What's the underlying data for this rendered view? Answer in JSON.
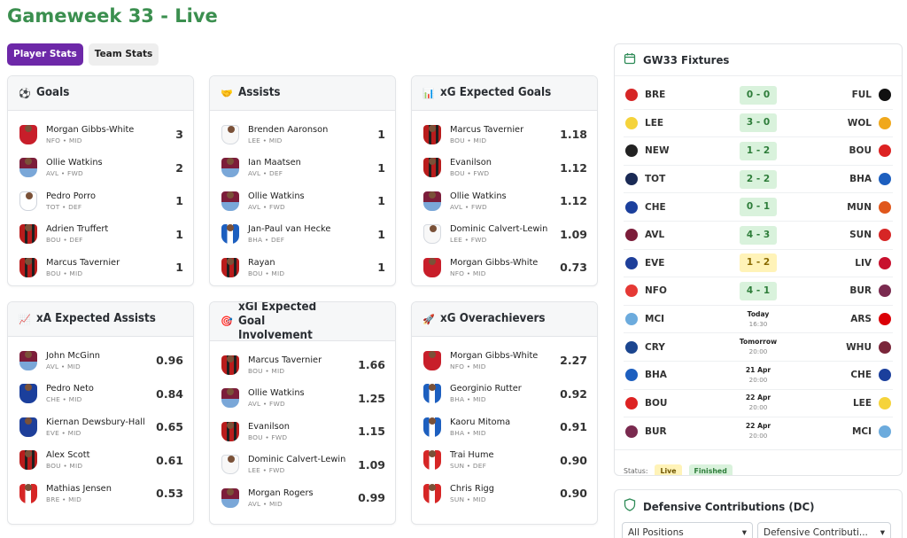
{
  "page": {
    "title": "Gameweek 33 - Live"
  },
  "tabs": [
    {
      "label": "Player Stats",
      "active": true
    },
    {
      "label": "Team Stats",
      "active": false
    }
  ],
  "cards": {
    "goals": {
      "title": "Goals",
      "icon": "soccer-ball-icon",
      "rows": [
        {
          "name": "Morgan Gibbs-White",
          "meta": "NFO • MID",
          "value": "3",
          "kit": "kit-nfo"
        },
        {
          "name": "Ollie Watkins",
          "meta": "AVL • FWD",
          "value": "2",
          "kit": "kit-avl"
        },
        {
          "name": "Pedro Porro",
          "meta": "TOT • DEF",
          "value": "1",
          "kit": "kit-tot"
        },
        {
          "name": "Adrien Truffert",
          "meta": "BOU • DEF",
          "value": "1",
          "kit": "kit-red"
        },
        {
          "name": "Marcus Tavernier",
          "meta": "BOU • MID",
          "value": "1",
          "kit": "kit-red"
        }
      ]
    },
    "assists": {
      "title": "Assists",
      "icon": "handshake-icon",
      "rows": [
        {
          "name": "Brenden Aaronson",
          "meta": "LEE • MID",
          "value": "1",
          "kit": "kit-lee"
        },
        {
          "name": "Ian Maatsen",
          "meta": "AVL • DEF",
          "value": "1",
          "kit": "kit-avl"
        },
        {
          "name": "Ollie Watkins",
          "meta": "AVL • FWD",
          "value": "1",
          "kit": "kit-avl"
        },
        {
          "name": "Jan-Paul van Hecke",
          "meta": "BHA • DEF",
          "value": "1",
          "kit": "kit-bha"
        },
        {
          "name": "Rayan",
          "meta": "BOU • MID",
          "value": "1",
          "kit": "kit-red"
        }
      ]
    },
    "xg": {
      "title": "xG Expected Goals",
      "icon": "bar-chart-icon",
      "rows": [
        {
          "name": "Marcus Tavernier",
          "meta": "BOU • MID",
          "value": "1.18",
          "kit": "kit-red"
        },
        {
          "name": "Evanilson",
          "meta": "BOU • FWD",
          "value": "1.12",
          "kit": "kit-red"
        },
        {
          "name": "Ollie Watkins",
          "meta": "AVL • FWD",
          "value": "1.12",
          "kit": "kit-avl"
        },
        {
          "name": "Dominic Calvert-Lewin",
          "meta": "LEE • FWD",
          "value": "1.09",
          "kit": "kit-lee"
        },
        {
          "name": "Morgan Gibbs-White",
          "meta": "NFO • MID",
          "value": "0.73",
          "kit": "kit-nfo"
        }
      ]
    },
    "xa": {
      "title": "xA Expected Assists",
      "icon": "trending-up-icon",
      "rows": [
        {
          "name": "John McGinn",
          "meta": "AVL • MID",
          "value": "0.96",
          "kit": "kit-avl"
        },
        {
          "name": "Pedro Neto",
          "meta": "CHE • MID",
          "value": "0.84",
          "kit": "kit-che"
        },
        {
          "name": "Kiernan Dewsbury-Hall",
          "meta": "EVE • MID",
          "value": "0.65",
          "kit": "kit-eve"
        },
        {
          "name": "Alex Scott",
          "meta": "BOU • MID",
          "value": "0.61",
          "kit": "kit-red"
        },
        {
          "name": "Mathias Jensen",
          "meta": "BRE • MID",
          "value": "0.53",
          "kit": "kit-bre"
        }
      ]
    },
    "xgi": {
      "title": "xGI Expected Goal Involvement",
      "icon": "target-icon",
      "rows": [
        {
          "name": "Marcus Tavernier",
          "meta": "BOU • MID",
          "value": "1.66",
          "kit": "kit-red"
        },
        {
          "name": "Ollie Watkins",
          "meta": "AVL • FWD",
          "value": "1.25",
          "kit": "kit-avl"
        },
        {
          "name": "Evanilson",
          "meta": "BOU • FWD",
          "value": "1.15",
          "kit": "kit-red"
        },
        {
          "name": "Dominic Calvert-Lewin",
          "meta": "LEE • FWD",
          "value": "1.09",
          "kit": "kit-lee"
        },
        {
          "name": "Morgan Rogers",
          "meta": "AVL • MID",
          "value": "0.99",
          "kit": "kit-avl"
        }
      ]
    },
    "overachievers": {
      "title": "xG Overachievers",
      "icon": "rocket-icon",
      "rows": [
        {
          "name": "Morgan Gibbs-White",
          "meta": "NFO • MID",
          "value": "2.27",
          "kit": "kit-nfo"
        },
        {
          "name": "Georginio Rutter",
          "meta": "BHA • MID",
          "value": "0.92",
          "kit": "kit-bha"
        },
        {
          "name": "Kaoru Mitoma",
          "meta": "BHA • MID",
          "value": "0.91",
          "kit": "kit-bha"
        },
        {
          "name": "Trai Hume",
          "meta": "SUN • DEF",
          "value": "0.90",
          "kit": "kit-sun"
        },
        {
          "name": "Chris Rigg",
          "meta": "SUN • MID",
          "value": "0.90",
          "kit": "kit-sun"
        }
      ]
    }
  },
  "fixtures": {
    "title": "GW33 Fixtures",
    "icon": "calendar-icon",
    "items": [
      {
        "home": "BRE",
        "away": "FUL",
        "score": "0 - 0",
        "state": "fin",
        "home_color": "#d62626",
        "away_color": "#111111"
      },
      {
        "home": "LEE",
        "away": "WOL",
        "score": "3 - 0",
        "state": "fin",
        "home_color": "#f5d33b",
        "away_color": "#f0a81c"
      },
      {
        "home": "NEW",
        "away": "BOU",
        "score": "1 - 2",
        "state": "fin",
        "home_color": "#222222",
        "away_color": "#d22"
      },
      {
        "home": "TOT",
        "away": "BHA",
        "score": "2 - 2",
        "state": "fin",
        "home_color": "#1a2a55",
        "away_color": "#1d5fbf"
      },
      {
        "home": "CHE",
        "away": "MUN",
        "score": "0 - 1",
        "state": "fin",
        "home_color": "#1b3f9c",
        "away_color": "#e0571c"
      },
      {
        "home": "AVL",
        "away": "SUN",
        "score": "4 - 3",
        "state": "fin",
        "home_color": "#7c1d3a",
        "away_color": "#d62626"
      },
      {
        "home": "EVE",
        "away": "LIV",
        "score": "1 - 2",
        "state": "live",
        "home_color": "#1e3f9a",
        "away_color": "#c8102e"
      },
      {
        "home": "NFO",
        "away": "BUR",
        "score": "4 - 1",
        "state": "fin",
        "home_color": "#e53935",
        "away_color": "#7a2a4f"
      },
      {
        "home": "MCI",
        "away": "ARS",
        "date": "Today",
        "time": "16:30",
        "state": "upcoming",
        "home_color": "#6cabdd",
        "away_color": "#db0007"
      },
      {
        "home": "CRY",
        "away": "WHU",
        "date": "Tomorrow",
        "time": "20:00",
        "state": "upcoming",
        "home_color": "#1b458f",
        "away_color": "#7a263a"
      },
      {
        "home": "BHA",
        "away": "CHE",
        "date": "21 Apr",
        "time": "20:00",
        "state": "upcoming",
        "home_color": "#1d5fbf",
        "away_color": "#1b3f9c"
      },
      {
        "home": "BOU",
        "away": "LEE",
        "date": "22 Apr",
        "time": "20:00",
        "state": "upcoming",
        "home_color": "#d22",
        "away_color": "#f5d33b"
      },
      {
        "home": "BUR",
        "away": "MCI",
        "date": "22 Apr",
        "time": "20:00",
        "state": "upcoming",
        "home_color": "#7a2a4f",
        "away_color": "#6cabdd"
      }
    ],
    "status_label": "Status:",
    "badge_live": "Live",
    "badge_finished": "Finished"
  },
  "dc": {
    "title": "Defensive Contributions (DC)",
    "icon": "shield-icon",
    "select_position": "All Positions",
    "select_sort": "Defensive Contributi..."
  }
}
